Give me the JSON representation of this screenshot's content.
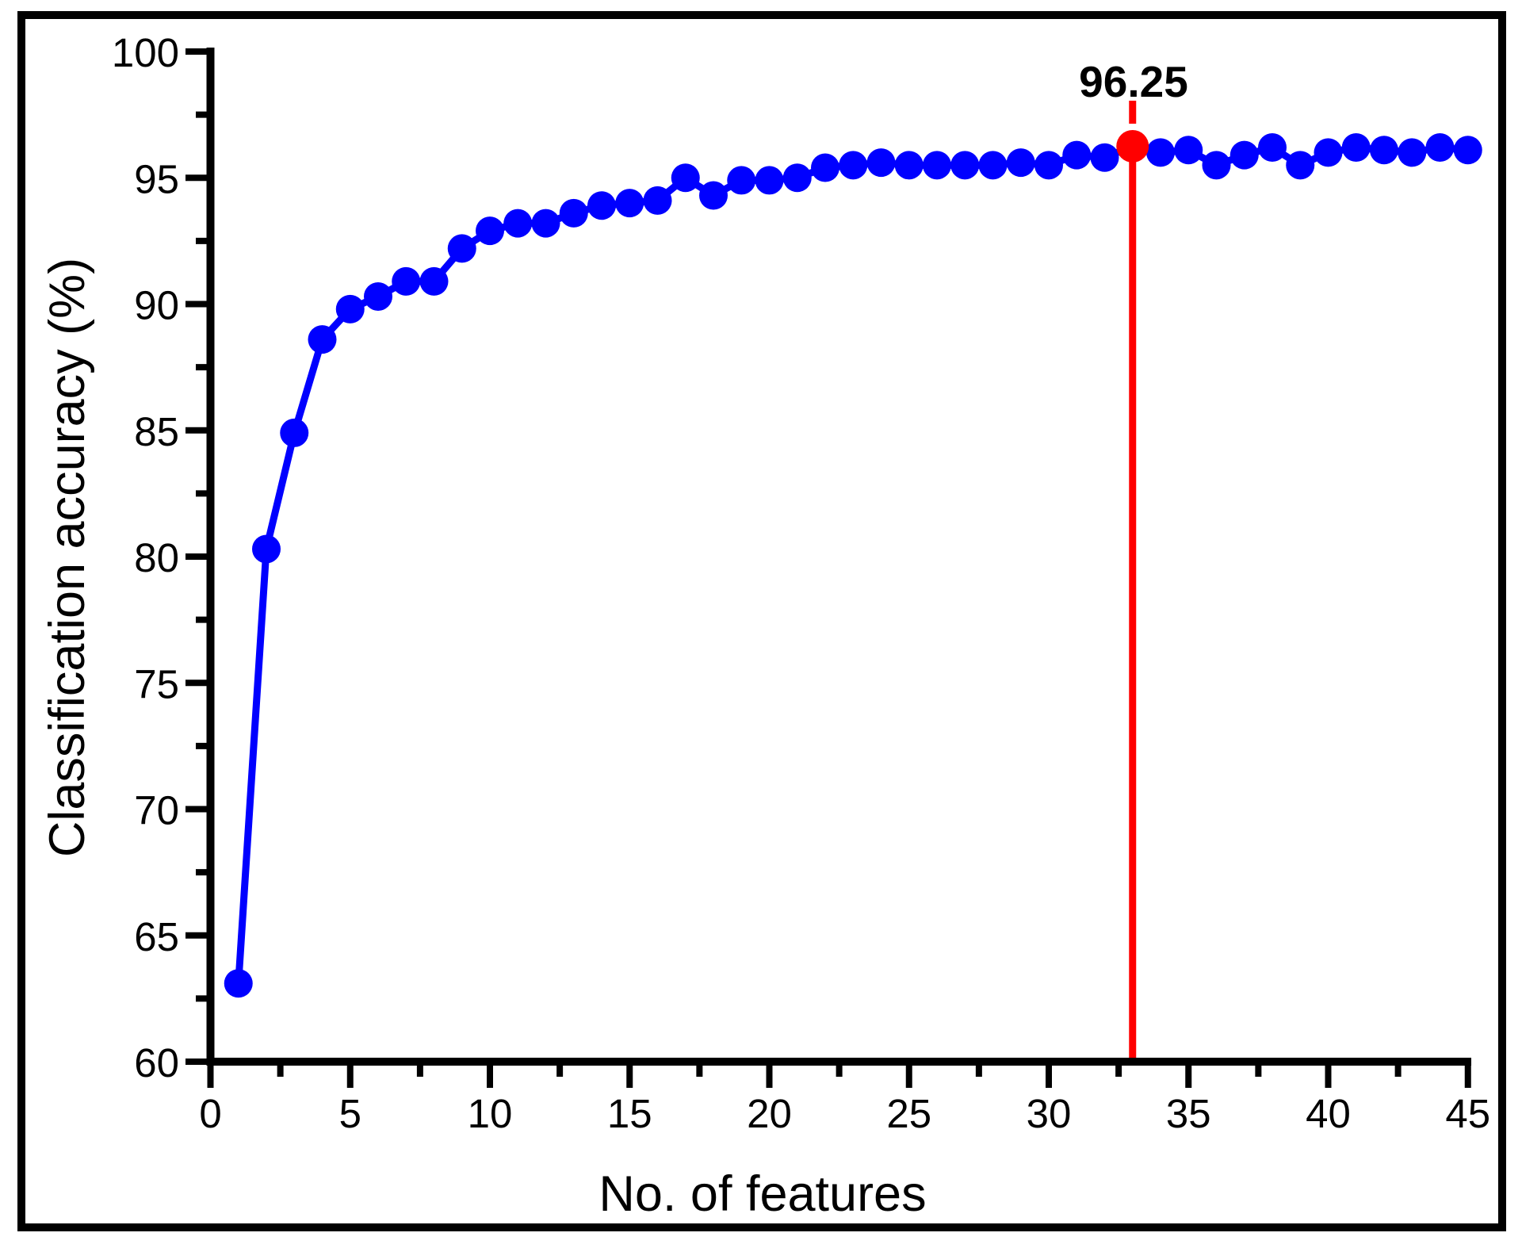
{
  "figure": {
    "background_color": "#FFFFFF",
    "border_color": "#000000",
    "annotation_label": "96.25"
  },
  "chart_data": {
    "type": "scatter-line",
    "title": "",
    "xlabel": "No. of features",
    "ylabel": "Classification accuracy (%)",
    "xlim": [
      0,
      45
    ],
    "ylim": [
      60,
      100
    ],
    "grid": false,
    "legend": false,
    "x_major_ticks": [
      0,
      5,
      10,
      15,
      20,
      25,
      30,
      35,
      40,
      45
    ],
    "x_minor_ticks": [
      2.5,
      7.5,
      12.5,
      17.5,
      22.5,
      27.5,
      32.5,
      37.5,
      42.5
    ],
    "y_major_ticks": [
      60,
      65,
      70,
      75,
      80,
      85,
      90,
      95,
      100
    ],
    "y_minor_ticks": [
      62.5,
      67.5,
      72.5,
      77.5,
      82.5,
      87.5,
      92.5,
      97.5
    ],
    "series": [
      {
        "name": "classification-accuracy",
        "color": "#0000FF",
        "x": [
          1,
          2,
          3,
          4,
          5,
          6,
          7,
          8,
          9,
          10,
          11,
          12,
          13,
          14,
          15,
          16,
          17,
          18,
          19,
          20,
          21,
          22,
          23,
          24,
          25,
          26,
          27,
          28,
          29,
          30,
          31,
          32,
          33,
          34,
          35,
          36,
          37,
          38,
          39,
          40,
          41,
          42,
          43,
          44,
          45
        ],
        "values": [
          63.1,
          80.3,
          84.9,
          88.6,
          89.8,
          90.3,
          90.9,
          90.9,
          92.2,
          92.9,
          93.2,
          93.2,
          93.6,
          93.9,
          94.0,
          94.1,
          95.0,
          94.3,
          94.9,
          94.9,
          95.0,
          95.4,
          95.5,
          95.6,
          95.5,
          95.5,
          95.5,
          95.5,
          95.6,
          95.5,
          95.9,
          95.8,
          96.25,
          96.0,
          96.1,
          95.5,
          95.9,
          96.2,
          95.5,
          96.0,
          96.2,
          96.1,
          96.0,
          96.2,
          96.1
        ]
      }
    ],
    "highlight": {
      "x": 33,
      "value": 96.25,
      "label": "96.25",
      "color": "#FF0000"
    },
    "axis_color": "#000000",
    "tick_label_color": "#000000"
  }
}
